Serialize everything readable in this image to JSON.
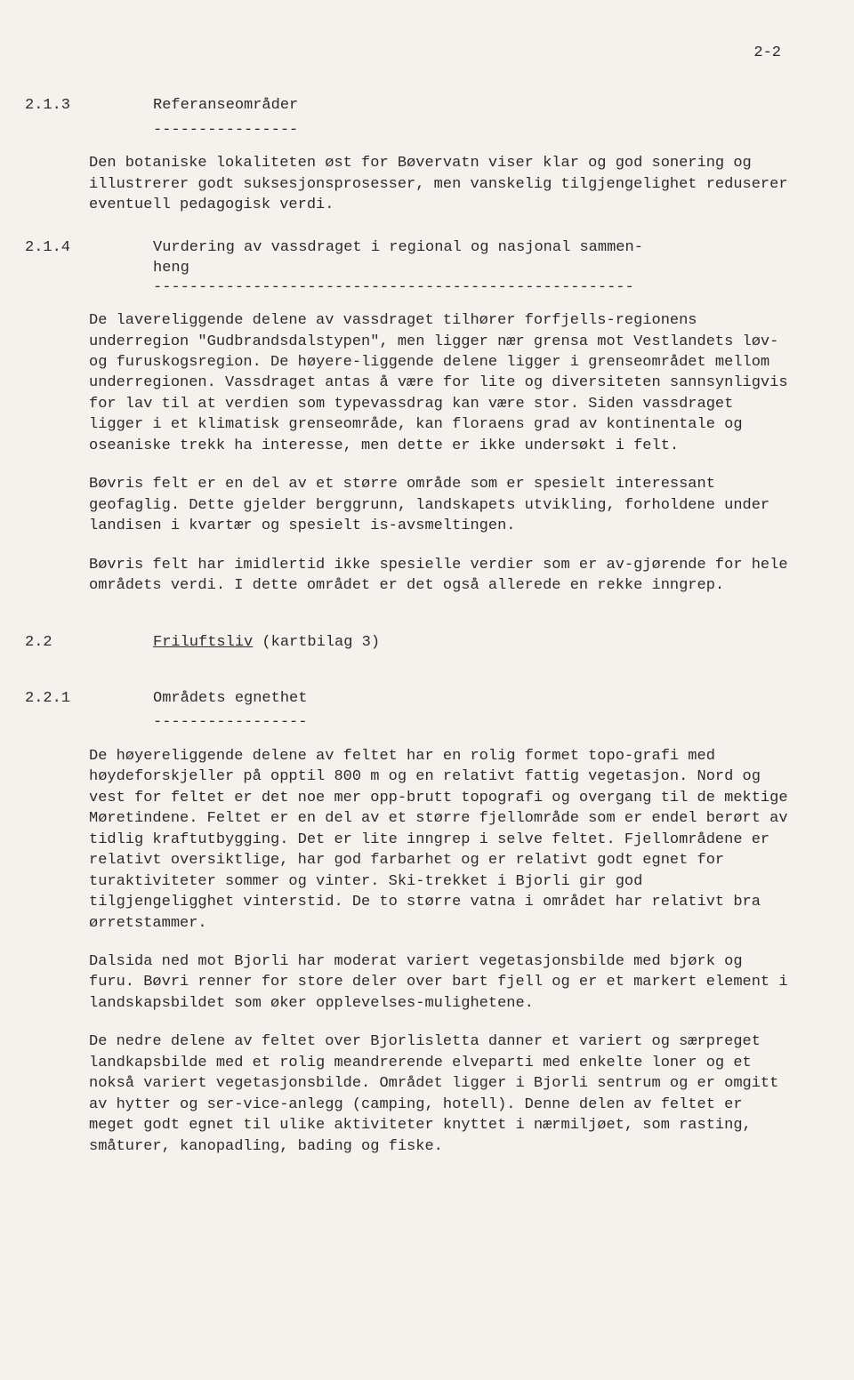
{
  "page_number": "2-2",
  "s213": {
    "number": "2.1.3",
    "title": "Referanseområder",
    "rule": "----------------",
    "p1": "Den botaniske lokaliteten øst for Bøvervatn viser klar og god sonering og illustrerer godt suksesjonsprosesser, men vanskelig tilgjengelighet reduserer eventuell pedagogisk verdi."
  },
  "s214": {
    "number": "2.1.4",
    "title_line1": "Vurdering av vassdraget i regional og nasjonal sammen-",
    "title_line2": "heng",
    "rule": "-----------------------------------------------------",
    "p1": "De lavereliggende delene av vassdraget tilhører forfjells-regionens underregion \"Gudbrandsdalstypen\", men ligger nær grensa mot Vestlandets løv- og furuskogsregion.  De høyere-liggende delene ligger i grenseområdet mellom underregionen. Vassdraget antas å være for lite og diversiteten sannsynligvis for lav til at verdien som typevassdrag kan være stor.  Siden vassdraget ligger i et klimatisk grenseområde, kan floraens grad av kontinentale og oseaniske trekk ha interesse, men dette er ikke undersøkt i felt.",
    "p2": "Bøvris felt er en del av et større område som er spesielt interessant geofaglig.  Dette gjelder berggrunn, landskapets utvikling, forholdene under landisen i kvartær og spesielt is-avsmeltingen.",
    "p3": "Bøvris felt har imidlertid ikke spesielle verdier som er av-gjørende for hele områdets verdi.  I dette området er det også allerede en rekke inngrep."
  },
  "s22": {
    "number": "2.2",
    "title": "Friluftsliv",
    "suffix": "  (kartbilag 3)"
  },
  "s221": {
    "number": "2.2.1",
    "title": "Områdets egnethet",
    "rule": "-----------------",
    "p1": "De høyereliggende delene av feltet har en rolig formet topo-grafi med høydeforskjeller på opptil 800 m og en relativt fattig vegetasjon.  Nord og vest for feltet er det noe mer opp-brutt topografi og overgang til de mektige Møretindene.  Feltet er en del av et større fjellområde som er endel berørt av tidlig kraftutbygging.  Det er lite inngrep i selve feltet. Fjellområdene er relativt oversiktlige, har god farbarhet og er relativt godt egnet for turaktiviteter sommer og vinter.  Ski-trekket i Bjorli gir god tilgjengeligghet vinterstid.  De to større vatna i området har relativt bra ørretstammer.",
    "p2": "Dalsida ned mot Bjorli har moderat variert vegetasjonsbilde med bjørk og furu.  Bøvri renner for store deler over bart fjell og er et markert element i landskapsbildet som øker opplevelses-mulighetene.",
    "p3": "De nedre delene av feltet over Bjorlisletta danner et variert og særpreget landkapsbilde med et rolig meandrerende elveparti med enkelte loner og et nokså variert vegetasjonsbilde. Området ligger i Bjorli sentrum og er omgitt av hytter og ser-vice-anlegg (camping, hotell).  Denne delen av feltet er meget godt egnet til ulike aktiviteter knyttet i nærmiljøet, som rasting, småturer, kanopadling, bading og fiske."
  }
}
